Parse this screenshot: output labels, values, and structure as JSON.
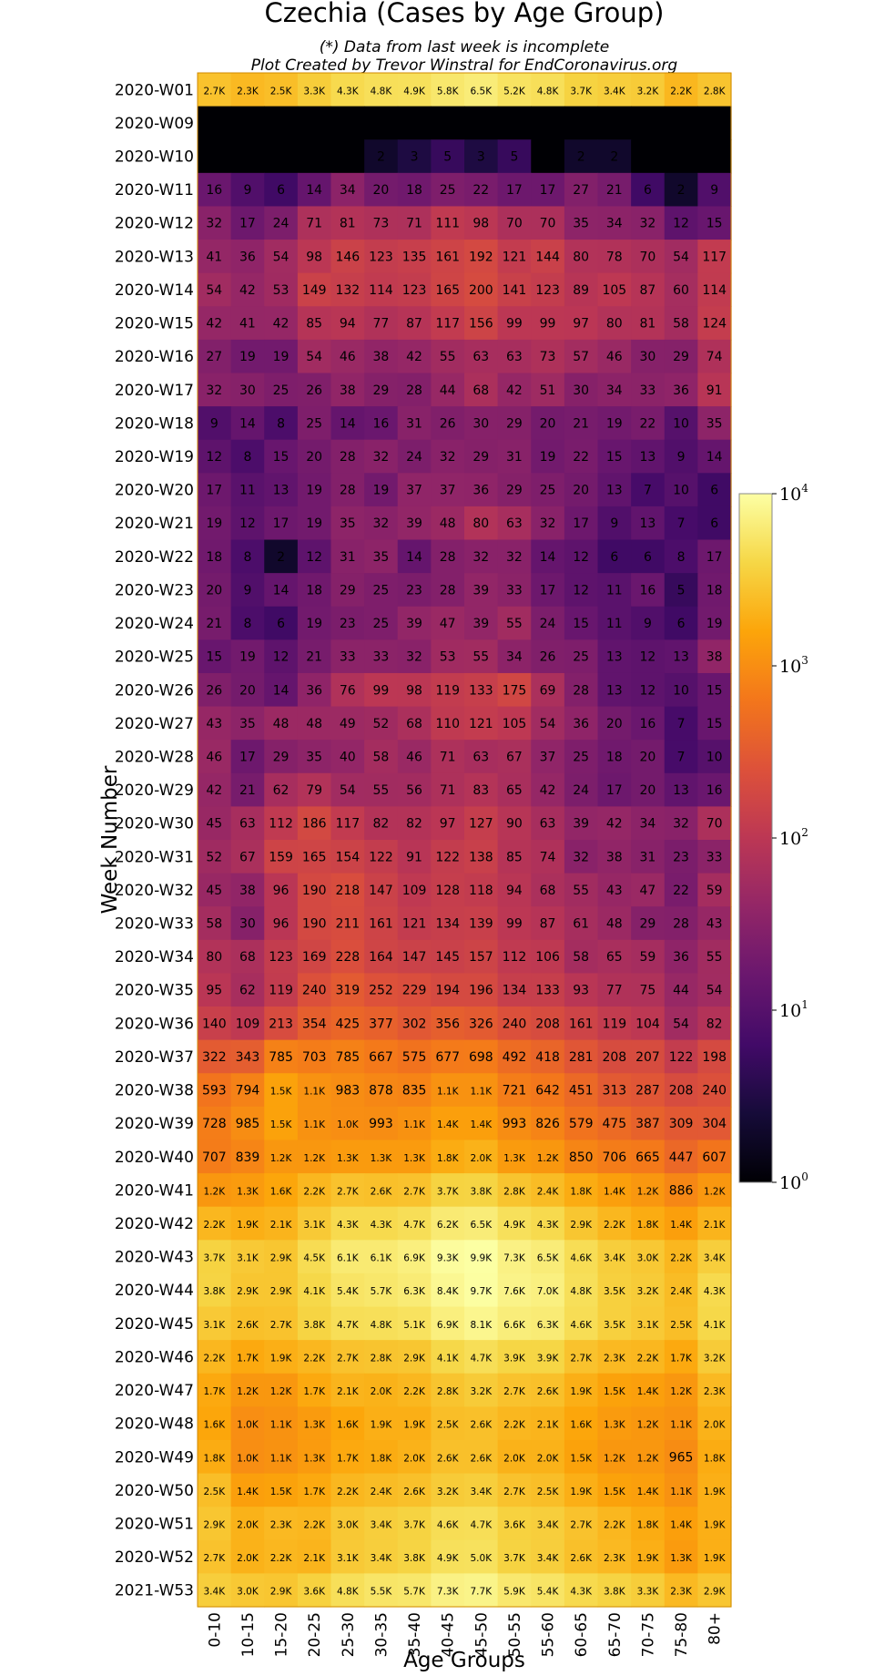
{
  "chart_data": {
    "type": "heatmap",
    "title": "Czechia (Cases by Age Group)",
    "subtitle_line1": "(*) Data from last week is incomplete",
    "subtitle_line2": "Plot Created by Trevor Winstral for EndCoronavirus.org",
    "xlabel": "Age Groups",
    "ylabel": "Week Number",
    "scale": "log",
    "colormap": "inferno",
    "color_range": [
      1,
      10000
    ],
    "colorbar_ticks": [
      "10^0",
      "10^1",
      "10^2",
      "10^3",
      "10^4"
    ],
    "x_categories": [
      "0-10",
      "10-15",
      "15-20",
      "20-25",
      "25-30",
      "30-35",
      "35-40",
      "40-45",
      "45-50",
      "50-55",
      "55-60",
      "60-65",
      "65-70",
      "70-75",
      "75-80",
      "80+"
    ],
    "y_categories": [
      "2020-W01",
      "2020-W09",
      "2020-W10",
      "2020-W11",
      "2020-W12",
      "2020-W13",
      "2020-W14",
      "2020-W15",
      "2020-W16",
      "2020-W17",
      "2020-W18",
      "2020-W19",
      "2020-W20",
      "2020-W21",
      "2020-W22",
      "2020-W23",
      "2020-W24",
      "2020-W25",
      "2020-W26",
      "2020-W27",
      "2020-W28",
      "2020-W29",
      "2020-W30",
      "2020-W31",
      "2020-W32",
      "2020-W33",
      "2020-W34",
      "2020-W35",
      "2020-W36",
      "2020-W37",
      "2020-W38",
      "2020-W39",
      "2020-W40",
      "2020-W41",
      "2020-W42",
      "2020-W43",
      "2020-W44",
      "2020-W45",
      "2020-W46",
      "2020-W47",
      "2020-W48",
      "2020-W49",
      "2020-W50",
      "2020-W51",
      "2020-W52",
      "2021-W53"
    ],
    "values": [
      [
        2700,
        2300,
        2500,
        3300,
        4300,
        4800,
        4900,
        5800,
        6500,
        5200,
        4800,
        3700,
        3400,
        3200,
        2200,
        2800
      ],
      [
        null,
        null,
        null,
        null,
        null,
        null,
        null,
        null,
        null,
        null,
        null,
        null,
        null,
        null,
        null,
        null
      ],
      [
        null,
        null,
        null,
        null,
        null,
        2,
        3,
        5,
        3,
        5,
        null,
        2,
        2,
        null,
        null,
        null
      ],
      [
        16,
        9,
        6,
        14,
        34,
        20,
        18,
        25,
        22,
        17,
        17,
        27,
        21,
        6,
        2,
        9
      ],
      [
        32,
        17,
        24,
        71,
        81,
        73,
        71,
        111,
        98,
        70,
        70,
        35,
        34,
        32,
        12,
        15
      ],
      [
        41,
        36,
        54,
        98,
        146,
        123,
        135,
        161,
        192,
        121,
        144,
        80,
        78,
        70,
        54,
        117
      ],
      [
        54,
        42,
        53,
        149,
        132,
        114,
        123,
        165,
        200,
        141,
        123,
        89,
        105,
        87,
        60,
        114
      ],
      [
        42,
        41,
        42,
        85,
        94,
        77,
        87,
        117,
        156,
        99,
        99,
        97,
        80,
        81,
        58,
        124
      ],
      [
        27,
        19,
        19,
        54,
        46,
        38,
        42,
        55,
        63,
        63,
        73,
        57,
        46,
        30,
        29,
        74
      ],
      [
        32,
        30,
        25,
        26,
        38,
        29,
        28,
        44,
        68,
        42,
        51,
        30,
        34,
        33,
        36,
        91
      ],
      [
        9,
        14,
        8,
        25,
        14,
        16,
        31,
        26,
        30,
        29,
        20,
        21,
        19,
        22,
        10,
        35
      ],
      [
        12,
        8,
        15,
        20,
        28,
        32,
        24,
        32,
        29,
        31,
        19,
        22,
        15,
        13,
        9,
        14
      ],
      [
        17,
        11,
        13,
        19,
        28,
        19,
        37,
        37,
        36,
        29,
        25,
        20,
        13,
        7,
        10,
        6
      ],
      [
        19,
        12,
        17,
        19,
        35,
        32,
        39,
        48,
        80,
        63,
        32,
        17,
        9,
        13,
        7,
        6
      ],
      [
        18,
        8,
        2,
        12,
        31,
        35,
        14,
        28,
        32,
        32,
        14,
        12,
        6,
        6,
        8,
        17
      ],
      [
        20,
        9,
        14,
        18,
        29,
        25,
        23,
        28,
        39,
        33,
        17,
        12,
        11,
        16,
        5,
        18
      ],
      [
        21,
        8,
        6,
        19,
        23,
        25,
        39,
        47,
        39,
        55,
        24,
        15,
        11,
        9,
        6,
        19
      ],
      [
        15,
        19,
        12,
        21,
        33,
        33,
        32,
        53,
        55,
        34,
        26,
        25,
        13,
        12,
        13,
        38
      ],
      [
        26,
        20,
        14,
        36,
        76,
        99,
        98,
        119,
        133,
        175,
        69,
        28,
        13,
        12,
        10,
        15
      ],
      [
        43,
        35,
        48,
        48,
        49,
        52,
        68,
        110,
        121,
        105,
        54,
        36,
        20,
        16,
        7,
        15
      ],
      [
        46,
        17,
        29,
        35,
        40,
        58,
        46,
        71,
        63,
        67,
        37,
        25,
        18,
        20,
        7,
        10
      ],
      [
        42,
        21,
        62,
        79,
        54,
        55,
        56,
        71,
        83,
        65,
        42,
        24,
        17,
        20,
        13,
        16
      ],
      [
        45,
        63,
        112,
        186,
        117,
        82,
        82,
        97,
        127,
        90,
        63,
        39,
        42,
        34,
        32,
        70
      ],
      [
        52,
        67,
        159,
        165,
        154,
        122,
        91,
        122,
        138,
        85,
        74,
        32,
        38,
        31,
        23,
        33
      ],
      [
        45,
        38,
        96,
        190,
        218,
        147,
        109,
        128,
        118,
        94,
        68,
        55,
        43,
        47,
        22,
        59
      ],
      [
        58,
        30,
        96,
        190,
        211,
        161,
        121,
        134,
        139,
        99,
        87,
        61,
        48,
        29,
        28,
        43
      ],
      [
        80,
        68,
        123,
        169,
        228,
        164,
        147,
        145,
        157,
        112,
        106,
        58,
        65,
        59,
        36,
        55
      ],
      [
        95,
        62,
        119,
        240,
        319,
        252,
        229,
        194,
        196,
        134,
        133,
        93,
        77,
        75,
        44,
        54
      ],
      [
        140,
        109,
        213,
        354,
        425,
        377,
        302,
        356,
        326,
        240,
        208,
        161,
        119,
        104,
        54,
        82
      ],
      [
        322,
        343,
        785,
        703,
        785,
        667,
        575,
        677,
        698,
        492,
        418,
        281,
        208,
        207,
        122,
        198
      ],
      [
        593,
        794,
        1500,
        1100,
        983,
        878,
        835,
        1100,
        1100,
        721,
        642,
        451,
        313,
        287,
        208,
        240
      ],
      [
        728,
        985,
        1500,
        1100,
        1000,
        993,
        1100,
        1400,
        1400,
        993,
        826,
        579,
        475,
        387,
        309,
        304
      ],
      [
        707,
        839,
        1200,
        1200,
        1300,
        1300,
        1300,
        1800,
        2000,
        1300,
        1200,
        850,
        706,
        665,
        447,
        607
      ],
      [
        1200,
        1300,
        1600,
        2200,
        2700,
        2600,
        2700,
        3700,
        3800,
        2800,
        2400,
        1800,
        1400,
        1200,
        886,
        1200
      ],
      [
        2200,
        1900,
        2100,
        3100,
        4300,
        4300,
        4700,
        6200,
        6500,
        4900,
        4300,
        2900,
        2200,
        1800,
        1400,
        2100
      ],
      [
        3700,
        3100,
        2900,
        4500,
        6100,
        6100,
        6900,
        9300,
        9900,
        7300,
        6500,
        4600,
        3400,
        3000,
        2200,
        3400
      ],
      [
        3800,
        2900,
        2900,
        4100,
        5400,
        5700,
        6300,
        8400,
        9700,
        7600,
        7000,
        4800,
        3500,
        3200,
        2400,
        4300
      ],
      [
        3100,
        2600,
        2700,
        3800,
        4700,
        4800,
        5100,
        6900,
        8100,
        6600,
        6300,
        4600,
        3500,
        3100,
        2500,
        4100
      ],
      [
        2200,
        1700,
        1900,
        2200,
        2700,
        2800,
        2900,
        4100,
        4700,
        3900,
        3900,
        2700,
        2300,
        2200,
        1700,
        3200
      ],
      [
        1700,
        1200,
        1200,
        1700,
        2100,
        2000,
        2200,
        2800,
        3200,
        2700,
        2600,
        1900,
        1500,
        1400,
        1200,
        2300
      ],
      [
        1600,
        1000,
        1100,
        1300,
        1600,
        1900,
        1900,
        2500,
        2600,
        2200,
        2100,
        1600,
        1300,
        1200,
        1100,
        2000
      ],
      [
        1800,
        1000,
        1100,
        1300,
        1700,
        1800,
        2000,
        2600,
        2600,
        2000,
        2000,
        1500,
        1200,
        1200,
        965,
        1800
      ],
      [
        2500,
        1400,
        1500,
        1700,
        2200,
        2400,
        2600,
        3200,
        3400,
        2700,
        2500,
        1900,
        1500,
        1400,
        1100,
        1900
      ],
      [
        2900,
        2000,
        2300,
        2200,
        3000,
        3400,
        3700,
        4600,
        4700,
        3600,
        3400,
        2700,
        2200,
        1800,
        1400,
        1900
      ],
      [
        2700,
        2000,
        2200,
        2100,
        3100,
        3400,
        3800,
        4900,
        5000,
        3700,
        3400,
        2600,
        2300,
        1900,
        1300,
        1900
      ],
      [
        3400,
        3000,
        2900,
        3600,
        4800,
        5500,
        5700,
        7300,
        7700,
        5900,
        5400,
        4300,
        3800,
        3300,
        2300,
        2900
      ]
    ]
  }
}
